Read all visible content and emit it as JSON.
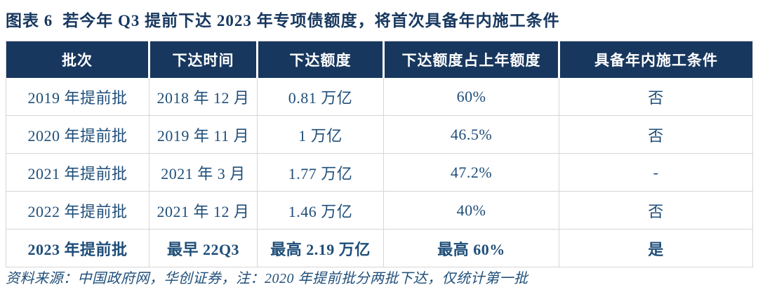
{
  "title": {
    "label": "图表 6",
    "text": "若今年 Q3 提前下达 2023 年专项债额度，将首次具备年内施工条件"
  },
  "table": {
    "headers": [
      "批次",
      "下达时间",
      "下达额度",
      "下达额度占上年额度",
      "具备年内施工条件"
    ],
    "rows": [
      {
        "cells": [
          "2019 年提前批",
          "2018 年 12 月",
          "0.81 万亿",
          "60%",
          "否"
        ],
        "emphasis": "normal"
      },
      {
        "cells": [
          "2020 年提前批",
          "2019 年 11 月",
          "1 万亿",
          "46.5%",
          "否"
        ],
        "emphasis": "normal"
      },
      {
        "cells": [
          "2021 年提前批",
          "2021 年 3 月",
          "1.77 万亿",
          "47.2%",
          "-"
        ],
        "emphasis": "normal"
      },
      {
        "cells": [
          "2022 年提前批",
          "2021 年 12 月",
          "1.46 万亿",
          "40%",
          "否"
        ],
        "emphasis": "normal"
      },
      {
        "cells": [
          "2023 年提前批",
          "最早 22Q3",
          "最高 2.19 万亿",
          "最高 60%",
          "是"
        ],
        "emphasis": "bold"
      }
    ]
  },
  "footer": {
    "source_note": "资料来源：中国政府网，华创证券，注：2020 年提前批分两批下达，仅统计第一批"
  },
  "colors": {
    "header_bg": "#17375E",
    "header_text": "#FFFFFF",
    "body_text": "#1F4E79",
    "title_text": "#17375E",
    "grid_line": "#D6D6D6"
  }
}
